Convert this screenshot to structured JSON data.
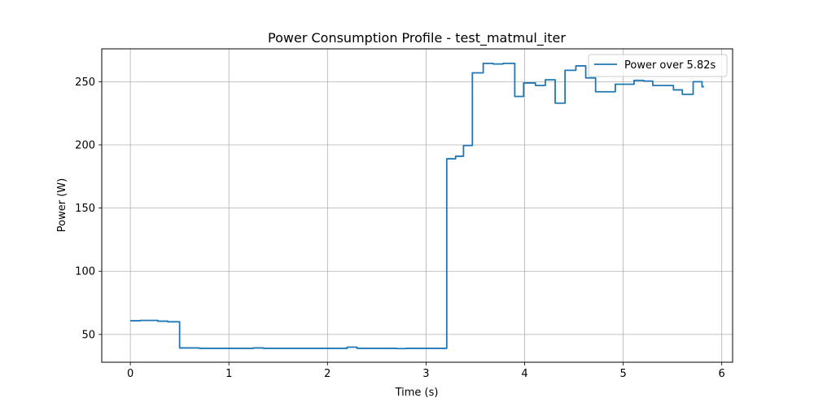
{
  "chart_data": {
    "type": "line",
    "title": "Power Consumption Profile - test_matmul_iter",
    "xlabel": "Time (s)",
    "ylabel": "Power (W)",
    "xlim": [
      -0.29,
      6.11
    ],
    "ylim": [
      28,
      276
    ],
    "xticks": [
      0,
      1,
      2,
      3,
      4,
      5,
      6
    ],
    "xtick_labels": [
      "0",
      "1",
      "2",
      "3",
      "4",
      "5",
      "6"
    ],
    "yticks": [
      50,
      100,
      150,
      200,
      250
    ],
    "ytick_labels": [
      "50",
      "100",
      "150",
      "200",
      "250"
    ],
    "grid": true,
    "legend": {
      "location": "upper right"
    },
    "colors": {
      "series": "#1f77b4",
      "grid": "#b0b0b0",
      "axes": "#000000"
    },
    "series": [
      {
        "name": "Power over 5.82s",
        "drawstyle": "steps-post",
        "x": [
          0.0,
          0.1,
          0.28,
          0.38,
          0.5,
          0.7,
          1.25,
          1.35,
          2.2,
          2.3,
          2.7,
          2.8,
          3.19,
          3.21,
          3.3,
          3.38,
          3.47,
          3.58,
          3.68,
          3.78,
          3.9,
          3.99,
          4.11,
          4.21,
          4.31,
          4.41,
          4.52,
          4.62,
          4.72,
          4.92,
          5.11,
          5.21,
          5.3,
          5.51,
          5.6,
          5.71,
          5.8,
          5.82
        ],
        "y": [
          60.8,
          61.1,
          60.5,
          60.0,
          39.3,
          39.0,
          39.3,
          39.0,
          39.9,
          39.0,
          38.8,
          39.0,
          39.0,
          189.0,
          191.0,
          199.5,
          257.0,
          264.5,
          264.0,
          264.5,
          238.3,
          249.0,
          247.0,
          251.5,
          233.0,
          259.0,
          262.5,
          253.0,
          242.0,
          248.0,
          251.0,
          250.5,
          247.0,
          243.5,
          240.0,
          250.0,
          246.0,
          246.0
        ]
      }
    ]
  }
}
